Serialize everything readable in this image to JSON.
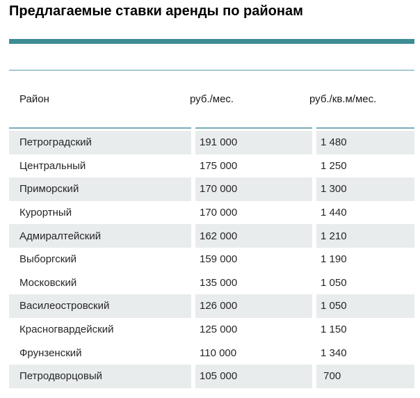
{
  "title": "Предлагаемые ставки аренды по районам",
  "table": {
    "headers": [
      {
        "label": "Район"
      },
      {
        "label": "руб./мес."
      },
      {
        "label": "руб./кв.м/мес."
      }
    ],
    "rows": [
      {
        "district": "Петроградский",
        "rate_month": "191 000",
        "rate_sqm": "1 480",
        "shaded": true
      },
      {
        "district": "Центральный",
        "rate_month": "175 000",
        "rate_sqm": "1 250",
        "shaded": false
      },
      {
        "district": "Приморский",
        "rate_month": "170 000",
        "rate_sqm": "1 300",
        "shaded": true
      },
      {
        "district": "Курортный",
        "rate_month": "170 000",
        "rate_sqm": "1 440",
        "shaded": false
      },
      {
        "district": "Адмиралтейский",
        "rate_month": "162 000",
        "rate_sqm": "1 210",
        "shaded": true
      },
      {
        "district": "Выборгский",
        "rate_month": "159 000",
        "rate_sqm": "1 190",
        "shaded": false
      },
      {
        "district": "Московский",
        "rate_month": "135 000",
        "rate_sqm": "1 050",
        "shaded": false
      },
      {
        "district": "Василеостровский",
        "rate_month": "126 000",
        "rate_sqm": "1 050",
        "shaded": true
      },
      {
        "district": "Красногвардейский",
        "rate_month": "125 000",
        "rate_sqm": "1 150",
        "shaded": false
      },
      {
        "district": "Фрунзенский",
        "rate_month": "110 000",
        "rate_sqm": "1 340",
        "shaded": false
      },
      {
        "district": "Петродворцовый",
        "rate_month": "105 000",
        "rate_sqm": " 700",
        "shaded": true
      }
    ]
  },
  "colors": {
    "accent_bar": "#3E8C94",
    "top_rule": "#A6C9D2",
    "header_rule": "#79ACBA",
    "row_shade": "#E8ECED",
    "text": "#262626",
    "title_text": "#000000"
  }
}
